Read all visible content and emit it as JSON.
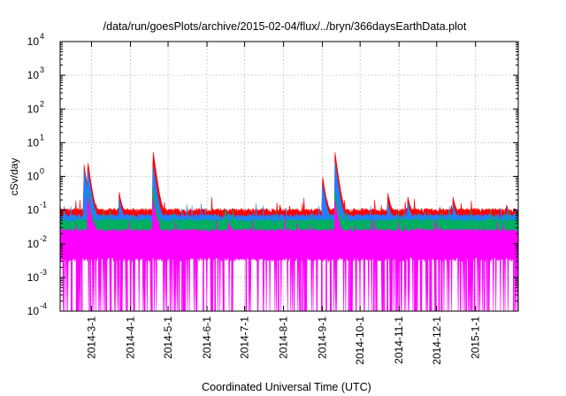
{
  "chart_data": {
    "type": "line",
    "title": "/data/run/goesPlots/archive/2015-02-04/flux/../bryn/366daysEarthData.plot",
    "xlabel": "Coordinated Universal Time (UTC)",
    "ylabel": "cSv/day",
    "yscale": "log",
    "ylim": [
      0.0001,
      10000
    ],
    "xlim": [
      "2014-02-04",
      "2015-02-04"
    ],
    "grid": true,
    "legend": "none",
    "x_ticks": [
      "2014-3-1",
      "2014-4-1",
      "2014-5-1",
      "2014-6-1",
      "2014-7-1",
      "2014-8-1",
      "2014-9-1",
      "2014-10-1",
      "2014-11-1",
      "2014-12-1",
      "2015-1-1"
    ],
    "y_ticks": [
      {
        "value": 0.0001,
        "base": "10",
        "exp": "-4"
      },
      {
        "value": 0.001,
        "base": "10",
        "exp": "-3"
      },
      {
        "value": 0.01,
        "base": "10",
        "exp": "-2"
      },
      {
        "value": 0.1,
        "base": "10",
        "exp": "-1"
      },
      {
        "value": 1,
        "base": "10",
        "exp": "0"
      },
      {
        "value": 10,
        "base": "10",
        "exp": "1"
      },
      {
        "value": 100,
        "base": "10",
        "exp": "2"
      },
      {
        "value": 1000,
        "base": "10",
        "exp": "3"
      },
      {
        "value": 10000,
        "base": "10",
        "exp": "4"
      }
    ],
    "series": [
      {
        "color": "#ff0000",
        "baseline": 0.08,
        "spikes": [
          [
            "2014-02-23",
            2.3
          ],
          [
            "2014-02-26",
            3.0
          ],
          [
            "2014-03-23",
            0.35
          ],
          [
            "2014-04-19",
            6.0
          ],
          [
            "2014-09-01",
            1.1
          ],
          [
            "2014-09-11",
            5.2
          ],
          [
            "2014-10-23",
            0.35
          ],
          [
            "2014-11-08",
            0.25
          ],
          [
            "2014-12-14",
            0.25
          ]
        ]
      },
      {
        "color": "#2080ff",
        "baseline": 0.055,
        "spikes": [
          [
            "2014-02-23",
            1.6
          ],
          [
            "2014-02-26",
            1.7
          ],
          [
            "2014-03-23",
            0.22
          ],
          [
            "2014-04-19",
            2.2
          ],
          [
            "2014-09-01",
            0.65
          ],
          [
            "2014-09-11",
            2.6
          ],
          [
            "2014-10-23",
            0.18
          ],
          [
            "2014-11-08",
            0.17
          ],
          [
            "2014-12-14",
            0.15
          ]
        ]
      },
      {
        "color": "#00b060",
        "baseline": 0.04,
        "spikes": [
          [
            "2014-02-26",
            0.45
          ],
          [
            "2014-04-19",
            0.55
          ],
          [
            "2014-09-11",
            0.4
          ]
        ]
      },
      {
        "color": "#ff00ff",
        "baseline": 0.02,
        "min": 0.0001,
        "spikes": [
          [
            "2014-02-26",
            0.3
          ],
          [
            "2014-04-19",
            0.25
          ],
          [
            "2014-09-11",
            0.2
          ]
        ]
      }
    ]
  }
}
